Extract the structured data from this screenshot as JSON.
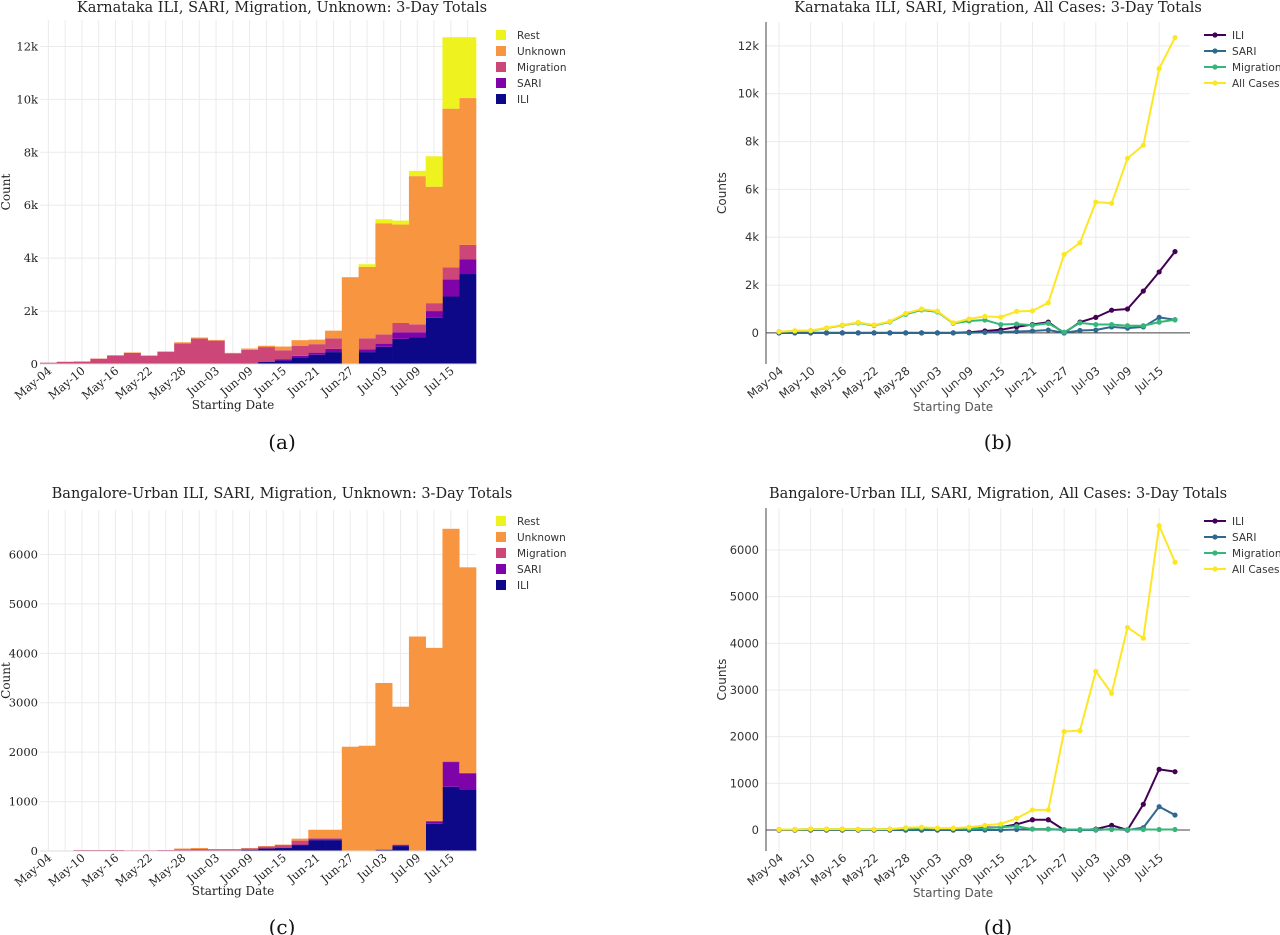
{
  "captions": [
    "(a)",
    "(b)",
    "(c)",
    "(d)"
  ],
  "chart_data": [
    {
      "type": "bar",
      "stacked": true,
      "title": "Karnataka ILI, SARI, Migration, Unknown: 3-Day Totals",
      "xlabel": "Starting Date",
      "ylabel": "Count",
      "ylim": [
        0,
        13000
      ],
      "yticks": [
        0,
        2000,
        4000,
        6000,
        8000,
        10000,
        12000
      ],
      "ytick_labels": [
        "0",
        "2k",
        "4k",
        "6k",
        "8k",
        "10k",
        "12k"
      ],
      "xtick_labels": [
        "May-04",
        "May-10",
        "May-16",
        "May-22",
        "May-28",
        "Jun-03",
        "Jun-09",
        "Jun-15",
        "Jun-21",
        "Jun-27",
        "Jul-03",
        "Jul-09",
        "Jul-15"
      ],
      "legend_position": "top-right",
      "categories": [
        "May-04",
        "May-07",
        "May-10",
        "May-13",
        "May-16",
        "May-19",
        "May-22",
        "May-25",
        "May-28",
        "May-31",
        "Jun-03",
        "Jun-06",
        "Jun-09",
        "Jun-12",
        "Jun-15",
        "Jun-18",
        "Jun-21",
        "Jun-24",
        "Jun-27",
        "Jun-30",
        "Jul-03",
        "Jul-06",
        "Jul-09",
        "Jul-12",
        "Jul-15",
        "Jul-18"
      ],
      "series": [
        {
          "name": "ILI",
          "color": "#0d0887",
          "values": [
            0,
            0,
            0,
            0,
            0,
            0,
            0,
            0,
            0,
            0,
            0,
            0,
            30,
            80,
            130,
            250,
            350,
            450,
            0,
            450,
            650,
            950,
            1000,
            1750,
            2550,
            3400
          ]
        },
        {
          "name": "SARI",
          "color": "#7e03a8",
          "values": [
            0,
            0,
            0,
            0,
            0,
            0,
            0,
            0,
            0,
            0,
            0,
            0,
            5,
            20,
            40,
            60,
            80,
            120,
            0,
            100,
            120,
            250,
            200,
            250,
            650,
            550
          ]
        },
        {
          "name": "Migration",
          "color": "#cc4778",
          "values": [
            50,
            80,
            90,
            200,
            320,
            420,
            310,
            460,
            780,
            960,
            880,
            400,
            500,
            540,
            350,
            370,
            320,
            400,
            30,
            420,
            350,
            350,
            300,
            300,
            450,
            550
          ]
        },
        {
          "name": "Unknown",
          "color": "#f89540",
          "values": [
            0,
            10,
            10,
            10,
            10,
            20,
            20,
            20,
            40,
            40,
            30,
            20,
            50,
            50,
            140,
            220,
            170,
            290,
            3250,
            2700,
            4200,
            3720,
            5600,
            4400,
            6000,
            5550
          ]
        },
        {
          "name": "Rest",
          "color": "#eef31f",
          "values": [
            0,
            0,
            0,
            0,
            0,
            0,
            0,
            0,
            0,
            0,
            0,
            0,
            0,
            0,
            0,
            0,
            0,
            0,
            0,
            100,
            150,
            150,
            200,
            1150,
            2700,
            2300
          ]
        }
      ]
    },
    {
      "type": "line",
      "title": "Karnataka ILI, SARI, Migration, All Cases: 3-Day Totals",
      "xlabel": "Starting Date",
      "ylabel": "Counts",
      "ylim": [
        -1300,
        13000
      ],
      "yticks": [
        0,
        2000,
        4000,
        6000,
        8000,
        10000,
        12000
      ],
      "ytick_labels": [
        "0",
        "2k",
        "4k",
        "6k",
        "8k",
        "10k",
        "12k"
      ],
      "xtick_labels": [
        "May-04",
        "May-10",
        "May-16",
        "May-22",
        "May-28",
        "Jun-03",
        "Jun-09",
        "Jun-15",
        "Jun-21",
        "Jun-27",
        "Jul-03",
        "Jul-09",
        "Jul-15"
      ],
      "legend_position": "top-right",
      "series": [
        {
          "name": "ILI",
          "color": "#440154",
          "values": [
            0,
            0,
            0,
            0,
            0,
            0,
            0,
            0,
            0,
            0,
            0,
            0,
            30,
            80,
            130,
            250,
            350,
            450,
            0,
            450,
            650,
            950,
            1000,
            1750,
            2550,
            3400
          ]
        },
        {
          "name": "SARI",
          "color": "#31688e",
          "values": [
            0,
            0,
            0,
            0,
            0,
            0,
            0,
            0,
            0,
            0,
            0,
            0,
            5,
            20,
            40,
            60,
            80,
            120,
            0,
            100,
            120,
            250,
            200,
            250,
            650,
            550
          ]
        },
        {
          "name": "Migration",
          "color": "#35b779",
          "values": [
            50,
            80,
            90,
            200,
            320,
            420,
            310,
            460,
            780,
            960,
            880,
            400,
            500,
            540,
            350,
            370,
            320,
            400,
            30,
            420,
            350,
            350,
            300,
            300,
            450,
            550
          ]
        },
        {
          "name": "All Cases",
          "color": "#fde725",
          "values": [
            50,
            90,
            100,
            210,
            330,
            440,
            330,
            480,
            820,
            1000,
            910,
            420,
            585,
            690,
            660,
            900,
            920,
            1260,
            3280,
            3770,
            5470,
            5420,
            7300,
            7850,
            11050,
            12350
          ]
        }
      ]
    },
    {
      "type": "bar",
      "stacked": true,
      "title": "Bangalore-Urban ILI, SARI, Migration, Unknown: 3-Day Totals",
      "xlabel": "Starting Date",
      "ylabel": "Count",
      "ylim": [
        0,
        6900
      ],
      "yticks": [
        0,
        1000,
        2000,
        3000,
        4000,
        5000,
        6000
      ],
      "ytick_labels": [
        "0",
        "1000",
        "2000",
        "3000",
        "4000",
        "5000",
        "6000"
      ],
      "xtick_labels": [
        "May-04",
        "May-10",
        "May-16",
        "May-22",
        "May-28",
        "Jun-03",
        "Jun-09",
        "Jun-15",
        "Jun-21",
        "Jun-27",
        "Jul-03",
        "Jul-09",
        "Jul-15"
      ],
      "legend_position": "top-right",
      "categories": [
        "May-04",
        "May-07",
        "May-10",
        "May-13",
        "May-16",
        "May-19",
        "May-22",
        "May-25",
        "May-28",
        "May-31",
        "Jun-03",
        "Jun-06",
        "Jun-09",
        "Jun-12",
        "Jun-15",
        "Jun-18",
        "Jun-21",
        "Jun-24",
        "Jun-27",
        "Jun-30",
        "Jul-03",
        "Jul-06",
        "Jul-09",
        "Jul-12",
        "Jul-15",
        "Jul-18"
      ],
      "series": [
        {
          "name": "ILI",
          "color": "#0d0887",
          "values": [
            0,
            0,
            0,
            0,
            0,
            0,
            0,
            0,
            0,
            0,
            0,
            0,
            20,
            50,
            60,
            120,
            220,
            220,
            0,
            0,
            20,
            100,
            0,
            550,
            1300,
            1250
          ]
        },
        {
          "name": "SARI",
          "color": "#7e03a8",
          "values": [
            0,
            0,
            0,
            0,
            0,
            0,
            0,
            0,
            0,
            0,
            0,
            0,
            0,
            0,
            0,
            10,
            20,
            20,
            0,
            0,
            0,
            20,
            0,
            50,
            500,
            320
          ]
        },
        {
          "name": "Migration",
          "color": "#cc4778",
          "values": [
            10,
            10,
            20,
            20,
            20,
            15,
            15,
            20,
            30,
            40,
            30,
            30,
            30,
            40,
            60,
            80,
            20,
            20,
            10,
            10,
            10,
            10,
            10,
            10,
            10,
            10
          ]
        },
        {
          "name": "Unknown",
          "color": "#f89540",
          "values": [
            0,
            0,
            0,
            0,
            0,
            0,
            0,
            0,
            20,
            20,
            10,
            10,
            10,
            10,
            10,
            40,
            170,
            170,
            2100,
            2120,
            3370,
            2790,
            4330,
            3500,
            4710,
            4160
          ]
        },
        {
          "name": "Rest",
          "color": "#eef31f",
          "values": [
            0,
            0,
            0,
            0,
            0,
            0,
            0,
            0,
            0,
            0,
            0,
            0,
            0,
            0,
            0,
            0,
            0,
            0,
            0,
            0,
            0,
            0,
            0,
            0,
            0,
            0
          ]
        }
      ]
    },
    {
      "type": "line",
      "title": "Bangalore-Urban ILI, SARI, Migration, All Cases: 3-Day Totals",
      "xlabel": "Starting Date",
      "ylabel": "Counts",
      "ylim": [
        -450,
        6900
      ],
      "yticks": [
        0,
        1000,
        2000,
        3000,
        4000,
        5000,
        6000
      ],
      "ytick_labels": [
        "0",
        "1000",
        "2000",
        "3000",
        "4000",
        "5000",
        "6000"
      ],
      "xtick_labels": [
        "May-04",
        "May-10",
        "May-16",
        "May-22",
        "May-28",
        "Jun-03",
        "Jun-09",
        "Jun-15",
        "Jun-21",
        "Jun-27",
        "Jul-03",
        "Jul-09",
        "Jul-15"
      ],
      "legend_position": "top-right",
      "series": [
        {
          "name": "ILI",
          "color": "#440154",
          "values": [
            0,
            0,
            0,
            0,
            0,
            0,
            0,
            0,
            0,
            0,
            0,
            0,
            20,
            50,
            60,
            120,
            220,
            220,
            0,
            0,
            20,
            100,
            0,
            550,
            1300,
            1250
          ]
        },
        {
          "name": "SARI",
          "color": "#31688e",
          "values": [
            0,
            0,
            0,
            0,
            0,
            0,
            0,
            0,
            0,
            0,
            0,
            0,
            0,
            0,
            0,
            10,
            20,
            20,
            0,
            0,
            0,
            20,
            0,
            50,
            500,
            320
          ]
        },
        {
          "name": "Migration",
          "color": "#35b779",
          "values": [
            10,
            10,
            20,
            20,
            20,
            15,
            15,
            20,
            30,
            40,
            30,
            30,
            30,
            40,
            60,
            80,
            20,
            20,
            10,
            10,
            10,
            10,
            10,
            10,
            10,
            10
          ]
        },
        {
          "name": "All Cases",
          "color": "#fde725",
          "values": [
            10,
            10,
            20,
            20,
            20,
            15,
            15,
            20,
            50,
            60,
            40,
            40,
            60,
            100,
            130,
            250,
            430,
            430,
            2110,
            2130,
            3400,
            2930,
            4340,
            4110,
            6520,
            5740
          ]
        }
      ]
    }
  ]
}
